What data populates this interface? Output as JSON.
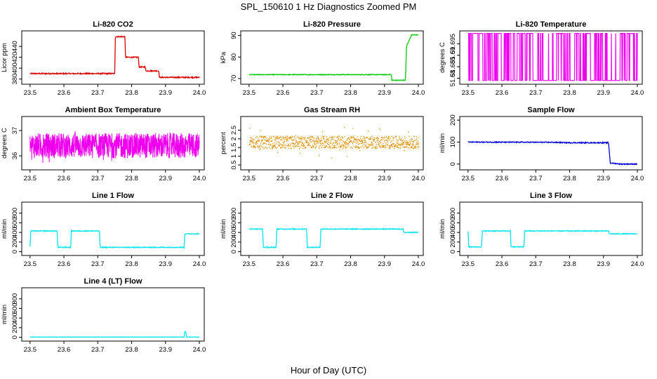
{
  "title": "SPL_150610  1 Hz Diagnostics Zoomed PM",
  "xlabel": "Hour of Day (UTC)",
  "chart_data": [
    {
      "type": "line",
      "title": "Li-820 CO2",
      "ylabel": "Licor ppm",
      "color": "#dd0000",
      "xlim": [
        23.49,
        24.0
      ],
      "ylim": [
        373,
        466
      ],
      "xticks": [
        "23.5",
        "23.6",
        "23.7",
        "23.8",
        "23.9",
        "24.0"
      ],
      "yticks": [
        380,
        400,
        420,
        440
      ],
      "series": [
        {
          "x": [
            23.5,
            23.75,
            23.752,
            23.78,
            23.782,
            23.82,
            23.822,
            23.84,
            23.842,
            23.88,
            23.882,
            23.96,
            24.0
          ],
          "y": [
            390,
            390,
            458,
            458,
            420,
            420,
            402,
            402,
            395,
            395,
            383,
            383,
            383
          ]
        }
      ],
      "noise": 1.0
    },
    {
      "type": "line",
      "title": "Li-820 Pressure",
      "ylabel": "kPa",
      "color": "#00cc00",
      "xlim": [
        23.49,
        24.0
      ],
      "ylim": [
        68,
        91.5
      ],
      "xticks": [
        "23.5",
        "23.6",
        "23.7",
        "23.8",
        "23.9",
        "24.0"
      ],
      "yticks": [
        70,
        80,
        90
      ],
      "series": [
        {
          "x": [
            23.5,
            23.92,
            23.922,
            23.962,
            23.965,
            23.98,
            24.0
          ],
          "y": [
            71.8,
            71.8,
            69.2,
            69.2,
            85,
            90.3,
            90.3
          ]
        }
      ],
      "noise": 0.15
    },
    {
      "type": "line",
      "title": "Li-820 Temperature",
      "ylabel": "degrees C",
      "color": "#ee00ee",
      "xlim": [
        23.49,
        24.0
      ],
      "ylim": [
        51.678,
        51.7
      ],
      "xticks": [
        "23.5",
        "23.6",
        "23.7",
        "23.8",
        "23.9",
        "24.0"
      ],
      "yticks": [
        51.68,
        51.685,
        51.69,
        51.695
      ],
      "levels": [
        51.6995,
        51.679
      ]
    },
    {
      "type": "line",
      "title": "Ambient Box Temperature",
      "ylabel": "degrees C",
      "color": "#ee00ee",
      "xlim": [
        23.49,
        24.0
      ],
      "ylim": [
        35.5,
        37.5
      ],
      "xticks": [
        "23.5",
        "23.6",
        "23.7",
        "23.8",
        "23.9",
        "24.0"
      ],
      "yticks": [
        36.0,
        37.0
      ],
      "center": 36.4,
      "spread": 0.5
    },
    {
      "type": "scatter",
      "title": "Gas Stream RH",
      "ylabel": "percent",
      "color": "#e09000",
      "xlim": [
        23.49,
        24.0
      ],
      "ylim": [
        0.3,
        3.2
      ],
      "xticks": [
        "23.5",
        "23.6",
        "23.7",
        "23.8",
        "23.9",
        "24.0"
      ],
      "yticks": [
        0.5,
        1.0,
        1.5,
        2.0,
        2.5
      ],
      "center": 1.8,
      "spread": 0.35
    },
    {
      "type": "line",
      "title": "Sample Flow",
      "ylabel": "ml/min",
      "color": "#0000dd",
      "xlim": [
        23.49,
        24.0
      ],
      "ylim": [
        -20,
        210
      ],
      "xticks": [
        "23.5",
        "23.6",
        "23.7",
        "23.8",
        "23.9",
        "24.0"
      ],
      "yticks": [
        0,
        100,
        200
      ],
      "series": [
        {
          "x": [
            23.5,
            23.75,
            23.8,
            23.915,
            23.92,
            23.95,
            24.0
          ],
          "y": [
            100,
            99,
            97,
            97,
            5,
            0,
            0
          ]
        }
      ],
      "noise": 2.0
    },
    {
      "type": "line",
      "title": "Line 1 Flow",
      "ylabel": "ml/min",
      "color": "#00e5ee",
      "xlim": [
        23.49,
        24.0
      ],
      "ylim": [
        -50,
        1000
      ],
      "xticks": [
        "23.5",
        "23.6",
        "23.7",
        "23.8",
        "23.9",
        "24.0"
      ],
      "yticks": [
        0,
        200,
        400,
        600,
        800
      ],
      "series": [
        {
          "x": [
            23.5,
            23.502,
            23.58,
            23.582,
            23.62,
            23.622,
            23.705,
            23.707,
            23.955,
            23.957,
            24.0
          ],
          "y": [
            100,
            430,
            430,
            90,
            90,
            430,
            430,
            90,
            90,
            370,
            370
          ]
        }
      ],
      "noise": 8
    },
    {
      "type": "line",
      "title": "Line 2 Flow",
      "ylabel": "ml/min",
      "color": "#00e5ee",
      "xlim": [
        23.49,
        24.0
      ],
      "ylim": [
        -50,
        1000
      ],
      "xticks": [
        "23.5",
        "23.6",
        "23.7",
        "23.8",
        "23.9",
        "24.0"
      ],
      "yticks": [
        0,
        200,
        400,
        600,
        800
      ],
      "series": [
        {
          "x": [
            23.5,
            23.54,
            23.542,
            23.58,
            23.582,
            23.67,
            23.672,
            23.71,
            23.712,
            23.955,
            23.957,
            24.0
          ],
          "y": [
            470,
            470,
            90,
            90,
            470,
            470,
            90,
            90,
            470,
            470,
            400,
            400
          ]
        }
      ],
      "noise": 8
    },
    {
      "type": "line",
      "title": "Line 3 Flow",
      "ylabel": "ml/min",
      "color": "#00e5ee",
      "xlim": [
        23.49,
        24.0
      ],
      "ylim": [
        -50,
        1000
      ],
      "xticks": [
        "23.5",
        "23.6",
        "23.7",
        "23.8",
        "23.9",
        "24.0"
      ],
      "yticks": [
        0,
        200,
        400,
        600,
        800
      ],
      "series": [
        {
          "x": [
            23.5,
            23.502,
            23.54,
            23.542,
            23.625,
            23.627,
            23.665,
            23.667,
            23.915,
            23.917,
            24.0
          ],
          "y": [
            430,
            100,
            100,
            430,
            430,
            100,
            100,
            430,
            430,
            370,
            370
          ]
        }
      ],
      "noise": 8
    },
    {
      "type": "line",
      "title": "Line 4 (LT) Flow",
      "ylabel": "ml/min",
      "color": "#00e5ee",
      "xlim": [
        23.49,
        24.0
      ],
      "ylim": [
        -50,
        1000
      ],
      "xticks": [
        "23.5",
        "23.6",
        "23.7",
        "23.8",
        "23.9",
        "24.0"
      ],
      "yticks": [
        0,
        200,
        400,
        600,
        800
      ],
      "series": [
        {
          "x": [
            23.5,
            23.955,
            23.957,
            23.96,
            23.962,
            24.0
          ],
          "y": [
            5,
            5,
            120,
            120,
            5,
            5
          ]
        }
      ],
      "noise": 2
    }
  ]
}
